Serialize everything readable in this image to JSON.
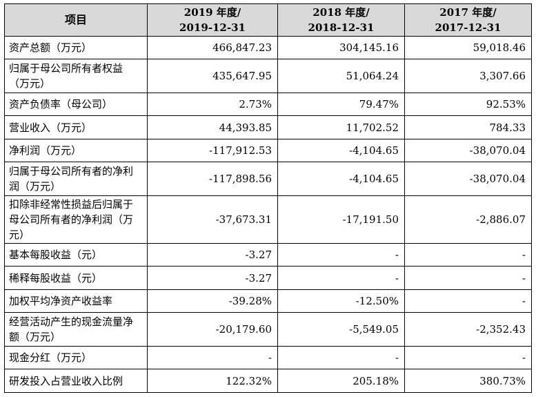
{
  "header": {
    "item": "项目",
    "years": [
      {
        "year": "2019 年度/",
        "date": "2019-12-31"
      },
      {
        "year": "2018 年度/",
        "date": "2018-12-31"
      },
      {
        "year": "2017 年度/",
        "date": "2017-12-31"
      }
    ]
  },
  "rows": [
    {
      "label": "资产总额（万元）",
      "values": [
        "466,847.23",
        "304,145.16",
        "59,018.46"
      ]
    },
    {
      "label": "归属于母公司所有者权益（万元）",
      "values": [
        "435,647.95",
        "51,064.24",
        "3,307.66"
      ]
    },
    {
      "label": "资产负债率（母公司）",
      "values": [
        "2.73%",
        "79.47%",
        "92.53%"
      ]
    },
    {
      "label": "营业收入（万元）",
      "values": [
        "44,393.85",
        "11,702.52",
        "784.33"
      ]
    },
    {
      "label": "净利润（万元）",
      "values": [
        "-117,912.53",
        "-4,104.65",
        "-38,070.04"
      ]
    },
    {
      "label": "归属于母公司所有者的净利润（万元）",
      "values": [
        "-117,898.56",
        "-4,104.65",
        "-38,070.04"
      ]
    },
    {
      "label": "扣除非经常性损益后归属于母公司所有者的净利润（万元）",
      "values": [
        "-37,673.31",
        "-17,191.50",
        "-2,886.07"
      ]
    },
    {
      "label": "基本每股收益（元）",
      "values": [
        "-3.27",
        "-",
        "-"
      ]
    },
    {
      "label": "稀释每股收益（元）",
      "values": [
        "-3.27",
        "-",
        "-"
      ]
    },
    {
      "label": "加权平均净资产收益率",
      "values": [
        "-39.28%",
        "-12.50%",
        "-"
      ]
    },
    {
      "label": "经营活动产生的现金流量净额（万元）",
      "values": [
        "-20,179.60",
        "-5,549.05",
        "-2,352.43"
      ]
    },
    {
      "label": "现金分红（万元）",
      "values": [
        "-",
        "-",
        "-"
      ]
    },
    {
      "label": "研发投入占营业收入比例",
      "values": [
        "122.32%",
        "205.18%",
        "380.73%"
      ]
    }
  ]
}
